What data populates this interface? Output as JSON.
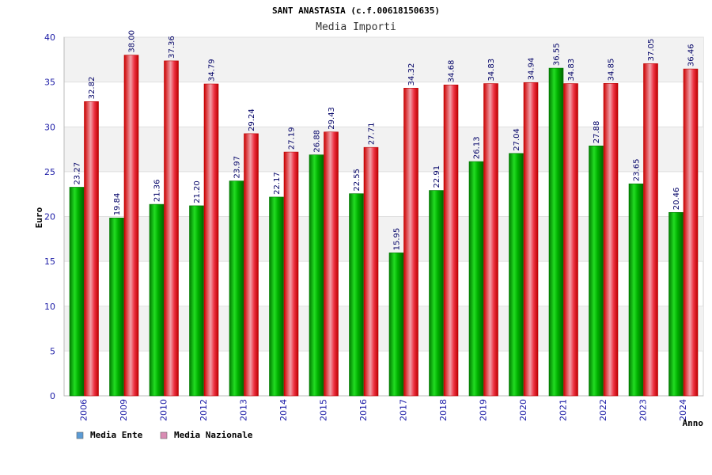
{
  "chart_data": {
    "type": "bar",
    "title": "SANT ANASTASIA (c.f.00618150635)",
    "subtitle": "Media Importi",
    "xlabel": "Anno",
    "ylabel": "Euro",
    "ylim": [
      0,
      40
    ],
    "yticks": [
      0,
      5,
      10,
      15,
      20,
      25,
      30,
      35,
      40
    ],
    "grid": true,
    "legend_position": "bottom-left",
    "categories": [
      "2006",
      "2009",
      "2010",
      "2012",
      "2013",
      "2014",
      "2015",
      "2016",
      "2017",
      "2018",
      "2019",
      "2020",
      "2021",
      "2022",
      "2023",
      "2024"
    ],
    "series": [
      {
        "name": "Media Ente",
        "color": "#00aa00",
        "legend_color": "#5b9bd5",
        "values": [
          23.27,
          19.84,
          21.36,
          21.2,
          23.97,
          22.17,
          26.88,
          22.55,
          15.95,
          22.91,
          26.13,
          27.04,
          36.55,
          27.88,
          23.65,
          20.46
        ],
        "labels": [
          "23.27",
          "19.84",
          "21.36",
          "21.20",
          "23.97",
          "22.17",
          "26.88",
          "22.55",
          "15.95",
          "22.91",
          "26.13",
          "27.04",
          "36.55",
          "27.88",
          "23.65",
          "20.46"
        ]
      },
      {
        "name": "Media Nazionale",
        "color": "#ee1111",
        "legend_color": "#d98cb3",
        "values": [
          32.82,
          38.0,
          37.36,
          34.79,
          29.24,
          27.19,
          29.43,
          27.71,
          34.32,
          34.68,
          34.83,
          34.94,
          34.83,
          34.85,
          37.05,
          36.46
        ],
        "labels": [
          "32.82",
          "38.00",
          "37.36",
          "34.79",
          "29.24",
          "27.19",
          "29.43",
          "27.71",
          "34.32",
          "34.68",
          "34.83",
          "34.94",
          "34.83",
          "34.85",
          "37.05",
          "36.46"
        ]
      }
    ]
  }
}
